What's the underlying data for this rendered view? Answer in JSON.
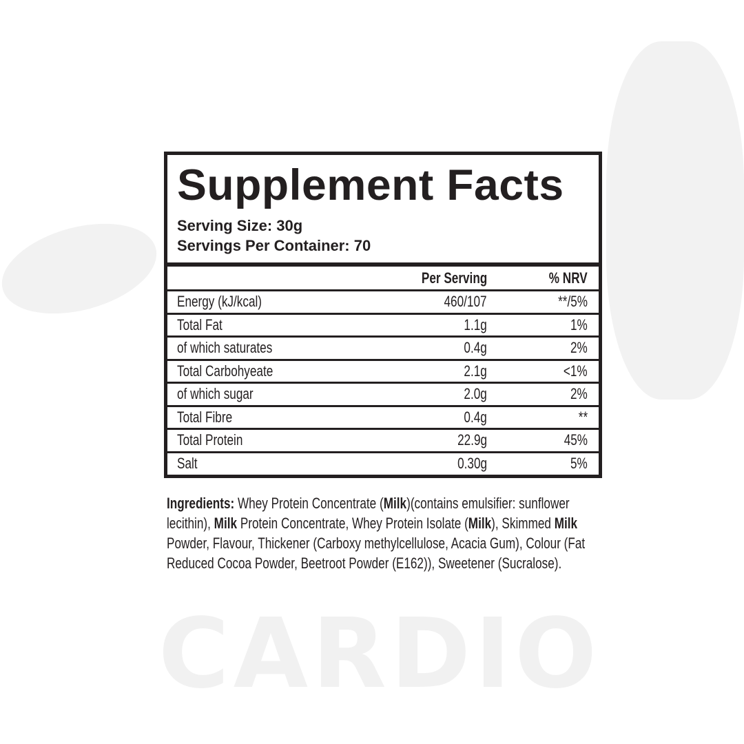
{
  "watermark": "CARDIO",
  "panel": {
    "title": "Supplement Facts",
    "serving_size_label": "Serving Size:",
    "serving_size_value": "30g",
    "servings_label": "Servings Per Container:",
    "servings_value": "70"
  },
  "table": {
    "headers": [
      "",
      "Per Serving",
      "% NRV"
    ],
    "rows": [
      {
        "label": "Energy (kJ/kcal)",
        "per_serving": "460/107",
        "nrv": "**/5%"
      },
      {
        "label": "Total Fat",
        "per_serving": "1.1g",
        "nrv": "1%"
      },
      {
        "label": "of which saturates",
        "per_serving": "0.4g",
        "nrv": "2%"
      },
      {
        "label": "Total Carbohyeate",
        "per_serving": "2.1g",
        "nrv": "<1%"
      },
      {
        "label": "of which sugar",
        "per_serving": "2.0g",
        "nrv": "2%"
      },
      {
        "label": "Total Fibre",
        "per_serving": "0.4g",
        "nrv": "**"
      },
      {
        "label": "Total Protein",
        "per_serving": "22.9g",
        "nrv": "45%"
      },
      {
        "label": "Salt",
        "per_serving": "0.30g",
        "nrv": "5%"
      }
    ]
  },
  "ingredients": {
    "lines": [
      [
        {
          "t": "Ingredients:",
          "b": true
        },
        {
          "t": " Whey Protein Concentrate (",
          "b": false
        },
        {
          "t": "Milk",
          "b": true
        },
        {
          "t": ")(contains emulsifier: sunflower",
          "b": false
        }
      ],
      [
        {
          "t": "lecithin), ",
          "b": false
        },
        {
          "t": "Milk",
          "b": true
        },
        {
          "t": " Protein Concentrate, Whey Protein Isolate (",
          "b": false
        },
        {
          "t": "Milk",
          "b": true
        },
        {
          "t": "), Skimmed ",
          "b": false
        },
        {
          "t": "Milk",
          "b": true
        }
      ],
      [
        {
          "t": "Powder, Flavour, Thickener (Carboxy methylcellulose, Acacia Gum), Colour (Fat",
          "b": false
        }
      ],
      [
        {
          "t": "Reduced Cocoa Powder, Beetroot Powder (E162)), Sweetener (Sucralose).",
          "b": false
        }
      ]
    ]
  }
}
